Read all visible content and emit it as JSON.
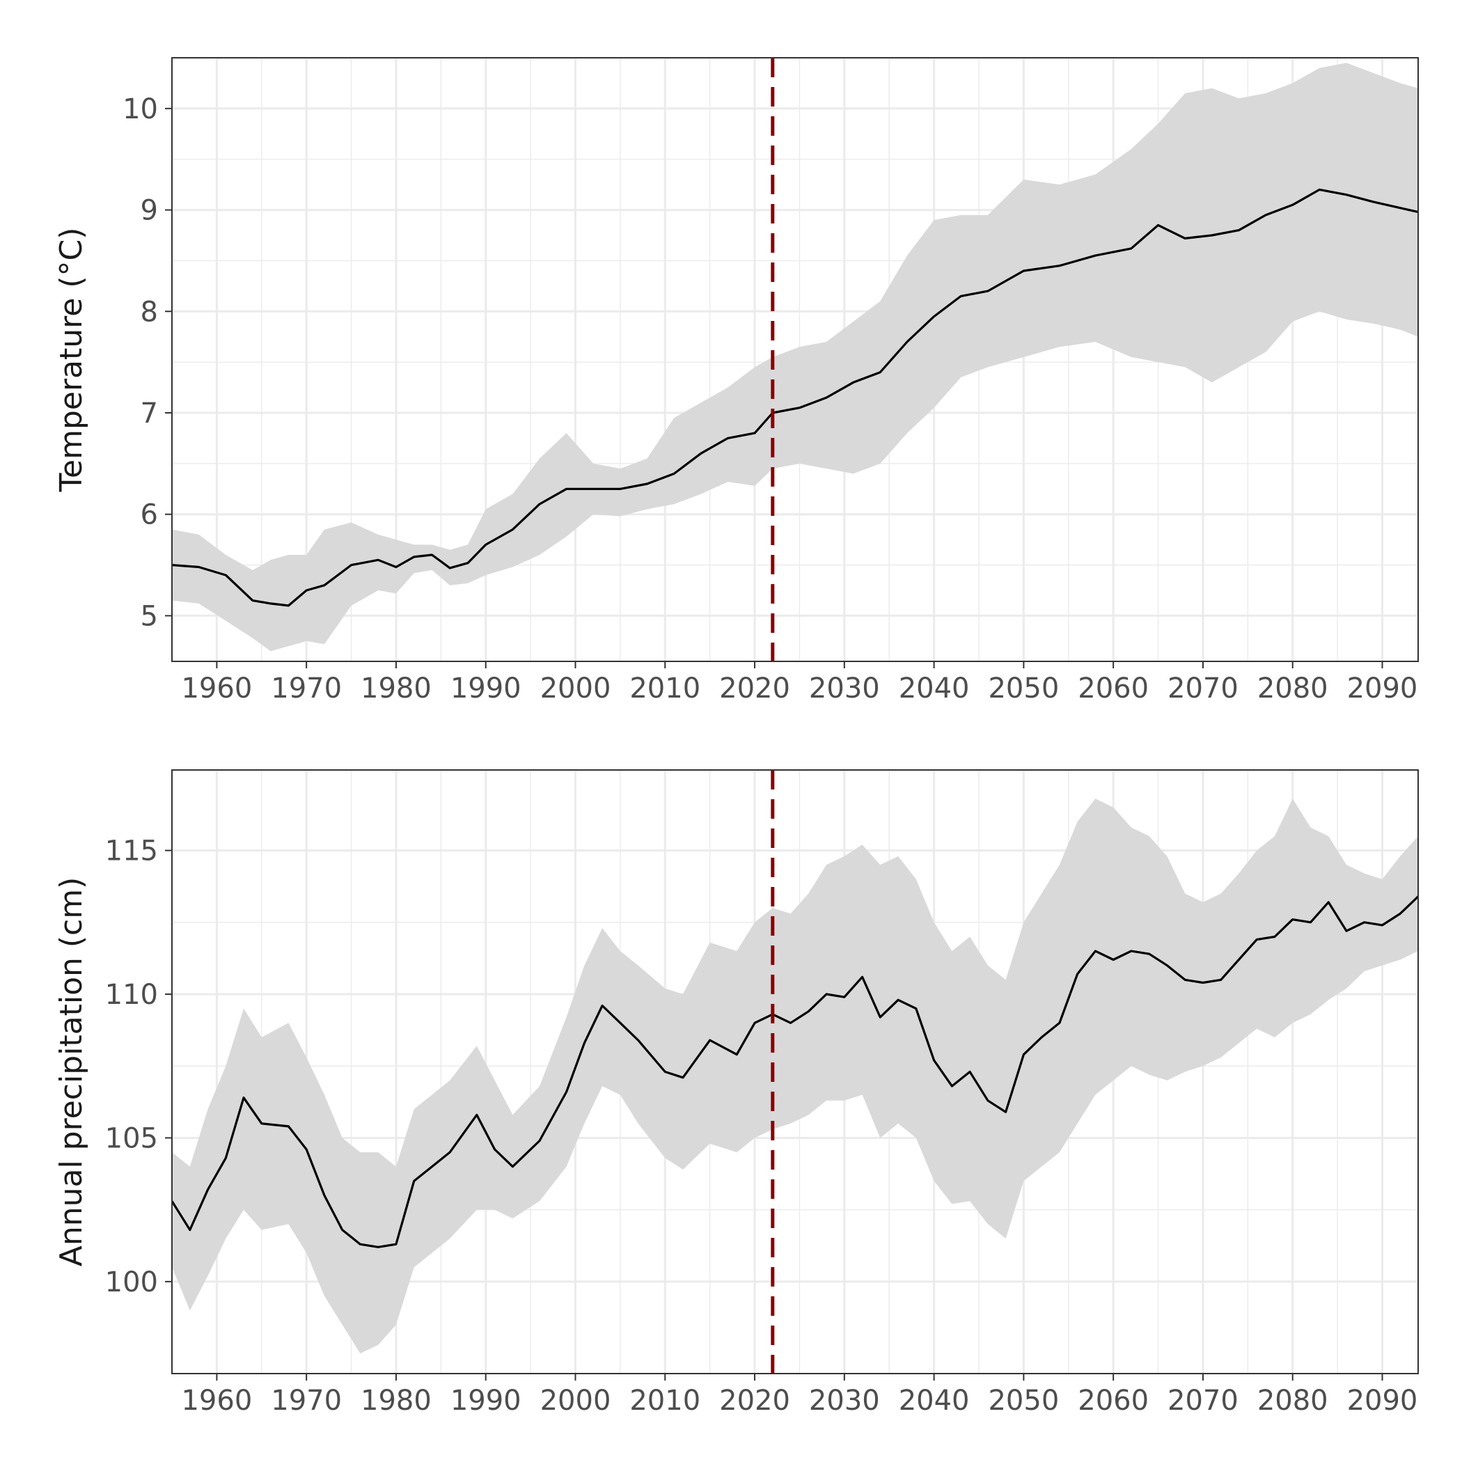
{
  "colors": {
    "panel_border": "#333333",
    "grid": "#ebebeb",
    "ribbon": "#d9d9d9",
    "line": "#000000",
    "reference_line": "#8b0000"
  },
  "chart_data": [
    {
      "type": "line",
      "ylabel": "Temperature (°C)",
      "xlabel": "",
      "xlim": [
        1955,
        2094
      ],
      "ylim": [
        4.55,
        10.5
      ],
      "x_ticks": [
        1960,
        1970,
        1980,
        1990,
        2000,
        2010,
        2020,
        2030,
        2040,
        2050,
        2060,
        2070,
        2080,
        2090
      ],
      "x_tick_labels": [
        "1960",
        "1970",
        "1980",
        "1990",
        "2000",
        "2010",
        "2020",
        "2030",
        "2040",
        "2050",
        "2060",
        "2070",
        "2080",
        "2090"
      ],
      "y_ticks": [
        5,
        6,
        7,
        8,
        9,
        10
      ],
      "y_tick_labels": [
        "5",
        "6",
        "7",
        "8",
        "9",
        "10"
      ],
      "grid": true,
      "legend": "none",
      "reference_line_x": 2022,
      "series": [
        {
          "x": [
            1955,
            1958,
            1961,
            1964,
            1966,
            1968,
            1970,
            1972,
            1975,
            1978,
            1980,
            1982,
            1984,
            1986,
            1988,
            1990,
            1993,
            1996,
            1999,
            2002,
            2005,
            2008,
            2011,
            2014,
            2017,
            2020,
            2022,
            2025,
            2028,
            2031,
            2034,
            2037,
            2040,
            2043,
            2046,
            2050,
            2054,
            2058,
            2062,
            2065,
            2068,
            2071,
            2074,
            2077,
            2080,
            2083,
            2086,
            2089,
            2092,
            2094
          ],
          "y": [
            5.5,
            5.48,
            5.4,
            5.15,
            5.12,
            5.1,
            5.25,
            5.3,
            5.5,
            5.55,
            5.48,
            5.58,
            5.6,
            5.47,
            5.52,
            5.7,
            5.85,
            6.1,
            6.25,
            6.25,
            6.25,
            6.3,
            6.4,
            6.6,
            6.75,
            6.8,
            7.0,
            7.05,
            7.15,
            7.3,
            7.4,
            7.7,
            7.95,
            8.15,
            8.2,
            8.4,
            8.45,
            8.55,
            8.62,
            8.85,
            8.72,
            8.75,
            8.8,
            8.95,
            9.05,
            9.2,
            9.15,
            9.08,
            9.02,
            8.98
          ],
          "lower": [
            5.15,
            5.12,
            4.95,
            4.78,
            4.65,
            4.7,
            4.75,
            4.72,
            5.1,
            5.25,
            5.22,
            5.42,
            5.45,
            5.3,
            5.32,
            5.4,
            5.48,
            5.6,
            5.78,
            6.0,
            5.98,
            6.05,
            6.1,
            6.2,
            6.32,
            6.28,
            6.45,
            6.5,
            6.45,
            6.4,
            6.5,
            6.8,
            7.05,
            7.35,
            7.45,
            7.55,
            7.65,
            7.7,
            7.55,
            7.5,
            7.45,
            7.3,
            7.45,
            7.6,
            7.9,
            8.0,
            7.92,
            7.88,
            7.82,
            7.75
          ],
          "upper": [
            5.85,
            5.8,
            5.6,
            5.45,
            5.55,
            5.6,
            5.6,
            5.85,
            5.92,
            5.8,
            5.75,
            5.7,
            5.7,
            5.65,
            5.7,
            6.05,
            6.2,
            6.55,
            6.8,
            6.5,
            6.45,
            6.55,
            6.95,
            7.1,
            7.25,
            7.45,
            7.55,
            7.65,
            7.7,
            7.9,
            8.1,
            8.55,
            8.9,
            8.95,
            8.95,
            9.3,
            9.25,
            9.35,
            9.6,
            9.85,
            10.15,
            10.2,
            10.1,
            10.15,
            10.25,
            10.4,
            10.45,
            10.35,
            10.25,
            10.2
          ]
        }
      ]
    },
    {
      "type": "line",
      "ylabel": "Annual precipitation (cm)",
      "xlabel": "",
      "xlim": [
        1955,
        2094
      ],
      "ylim": [
        96.8,
        117.8
      ],
      "x_ticks": [
        1960,
        1970,
        1980,
        1990,
        2000,
        2010,
        2020,
        2030,
        2040,
        2050,
        2060,
        2070,
        2080,
        2090
      ],
      "x_tick_labels": [
        "1960",
        "1970",
        "1980",
        "1990",
        "2000",
        "2010",
        "2020",
        "2030",
        "2040",
        "2050",
        "2060",
        "2070",
        "2080",
        "2090"
      ],
      "y_ticks": [
        100,
        105,
        110,
        115
      ],
      "y_tick_labels": [
        "100",
        "105",
        "110",
        "115"
      ],
      "grid": true,
      "legend": "none",
      "reference_line_x": 2022,
      "series": [
        {
          "x": [
            1955,
            1957,
            1959,
            1961,
            1963,
            1965,
            1968,
            1970,
            1972,
            1974,
            1976,
            1978,
            1980,
            1982,
            1984,
            1986,
            1989,
            1991,
            1993,
            1996,
            1999,
            2001,
            2003,
            2005,
            2007,
            2010,
            2012,
            2015,
            2018,
            2020,
            2022,
            2024,
            2026,
            2028,
            2030,
            2032,
            2034,
            2036,
            2038,
            2040,
            2042,
            2044,
            2046,
            2048,
            2050,
            2052,
            2054,
            2056,
            2058,
            2060,
            2062,
            2064,
            2066,
            2068,
            2070,
            2072,
            2074,
            2076,
            2078,
            2080,
            2082,
            2084,
            2086,
            2088,
            2090,
            2092,
            2094
          ],
          "y": [
            102.8,
            101.8,
            103.2,
            104.3,
            106.4,
            105.5,
            105.4,
            104.6,
            103.0,
            101.8,
            101.3,
            101.2,
            101.3,
            103.5,
            104.0,
            104.5,
            105.8,
            104.6,
            104.0,
            104.9,
            106.6,
            108.3,
            109.6,
            109.0,
            108.4,
            107.3,
            107.1,
            108.4,
            107.9,
            109.0,
            109.3,
            109.0,
            109.4,
            110.0,
            109.9,
            110.6,
            109.2,
            109.8,
            109.5,
            107.7,
            106.8,
            107.3,
            106.3,
            105.9,
            107.9,
            108.5,
            109.0,
            110.7,
            111.5,
            111.2,
            111.5,
            111.4,
            111.0,
            110.5,
            110.4,
            110.5,
            111.2,
            111.9,
            112.0,
            112.6,
            112.5,
            113.2,
            112.2,
            112.5,
            112.4,
            112.8,
            113.4
          ],
          "lower": [
            100.5,
            99.0,
            100.2,
            101.5,
            102.5,
            101.8,
            102.0,
            101.0,
            99.5,
            98.5,
            97.5,
            97.8,
            98.5,
            100.5,
            101.0,
            101.5,
            102.5,
            102.5,
            102.2,
            102.8,
            104.0,
            105.5,
            106.8,
            106.5,
            105.5,
            104.3,
            103.9,
            104.8,
            104.5,
            105.0,
            105.3,
            105.5,
            105.8,
            106.3,
            106.3,
            106.5,
            105.0,
            105.5,
            105.0,
            103.5,
            102.7,
            102.8,
            102.0,
            101.5,
            103.5,
            104.0,
            104.5,
            105.5,
            106.5,
            107.0,
            107.5,
            107.2,
            107.0,
            107.3,
            107.5,
            107.8,
            108.3,
            108.8,
            108.5,
            109.0,
            109.3,
            109.8,
            110.2,
            110.8,
            111.0,
            111.2,
            111.5
          ],
          "upper": [
            104.5,
            104.0,
            106.0,
            107.5,
            109.5,
            108.5,
            109.0,
            107.8,
            106.5,
            105.0,
            104.5,
            104.5,
            104.0,
            106.0,
            106.5,
            107.0,
            108.2,
            107.0,
            105.8,
            106.8,
            109.2,
            111.0,
            112.3,
            111.5,
            111.0,
            110.2,
            110.0,
            111.8,
            111.5,
            112.5,
            113.0,
            112.8,
            113.5,
            114.5,
            114.8,
            115.2,
            114.5,
            114.8,
            114.0,
            112.5,
            111.5,
            112.0,
            111.0,
            110.5,
            112.5,
            113.5,
            114.5,
            116.0,
            116.8,
            116.5,
            115.8,
            115.5,
            114.8,
            113.5,
            113.2,
            113.5,
            114.2,
            115.0,
            115.5,
            116.8,
            115.8,
            115.5,
            114.5,
            114.2,
            114.0,
            114.8,
            115.5
          ]
        }
      ]
    }
  ]
}
